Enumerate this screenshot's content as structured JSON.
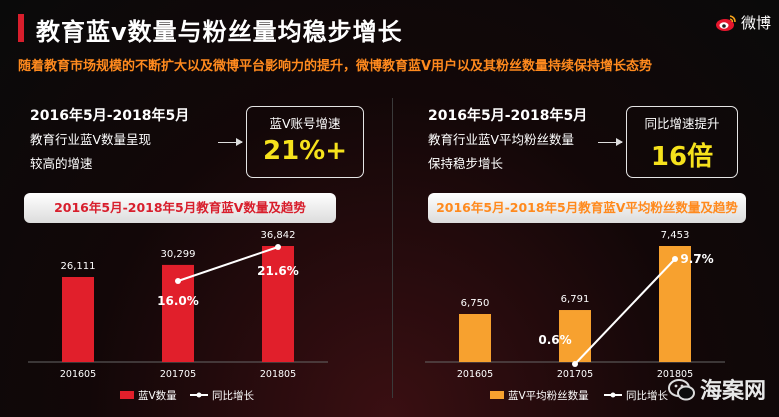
{
  "header": {
    "title": "教育蓝v数量与粉丝量均稳步增长",
    "logo_text": "微博"
  },
  "subtitle": "随着教育市场规模的不断扩大以及微博平台影响力的提升，微博教育蓝V用户以及其粉丝数量持续保持增长态势",
  "left": {
    "period": "2016年5月-2018年5月",
    "desc_line1": "教育行业蓝V数量呈现",
    "desc_line2": "较高的增速",
    "stat_label": "蓝V账号增速",
    "stat_value": "21%+",
    "banner": "2016年5月-2018年5月教育蓝V数量及趋势"
  },
  "right": {
    "period": "2016年5月-2018年5月",
    "desc_line1": "教育行业蓝V平均粉丝数量",
    "desc_line2": "保持稳步增长",
    "stat_label": "同比增速提升",
    "stat_value": "16倍",
    "banner": "2016年5月-2018年5月教育蓝V平均粉丝数量及趋势"
  },
  "footer": {
    "text": "海案网"
  },
  "colors": {
    "accent": "#d81e2c",
    "orange": "#ff8a1e",
    "yellow": "#f6e21c",
    "bar_red": "#e11f2b",
    "bar_orange": "#f7a12f"
  },
  "chart_data": [
    {
      "type": "bar",
      "categories": [
        "201605",
        "201705",
        "201805"
      ],
      "series": [
        {
          "name": "蓝V数量",
          "kind": "bar",
          "values": [
            26111,
            30299,
            36842
          ],
          "labels": [
            "26,111",
            "30,299",
            "36,842"
          ]
        },
        {
          "name": "同比增长",
          "kind": "line",
          "values": [
            null,
            16.0,
            21.6
          ],
          "labels": [
            "",
            "16.0%",
            "21.6%"
          ]
        }
      ],
      "legend": [
        "蓝V数量",
        "同比增长"
      ]
    },
    {
      "type": "bar",
      "categories": [
        "201605",
        "201705",
        "201805"
      ],
      "series": [
        {
          "name": "蓝V平均粉丝数量",
          "kind": "bar",
          "values": [
            6750,
            6791,
            7453
          ],
          "labels": [
            "6,750",
            "6,791",
            "7,453"
          ]
        },
        {
          "name": "同比增长",
          "kind": "line",
          "values": [
            null,
            0.6,
            9.7
          ],
          "labels": [
            "",
            "0.6%",
            "9.7%"
          ]
        }
      ],
      "legend": [
        "蓝V平均粉丝数量",
        "同比增长"
      ]
    }
  ]
}
